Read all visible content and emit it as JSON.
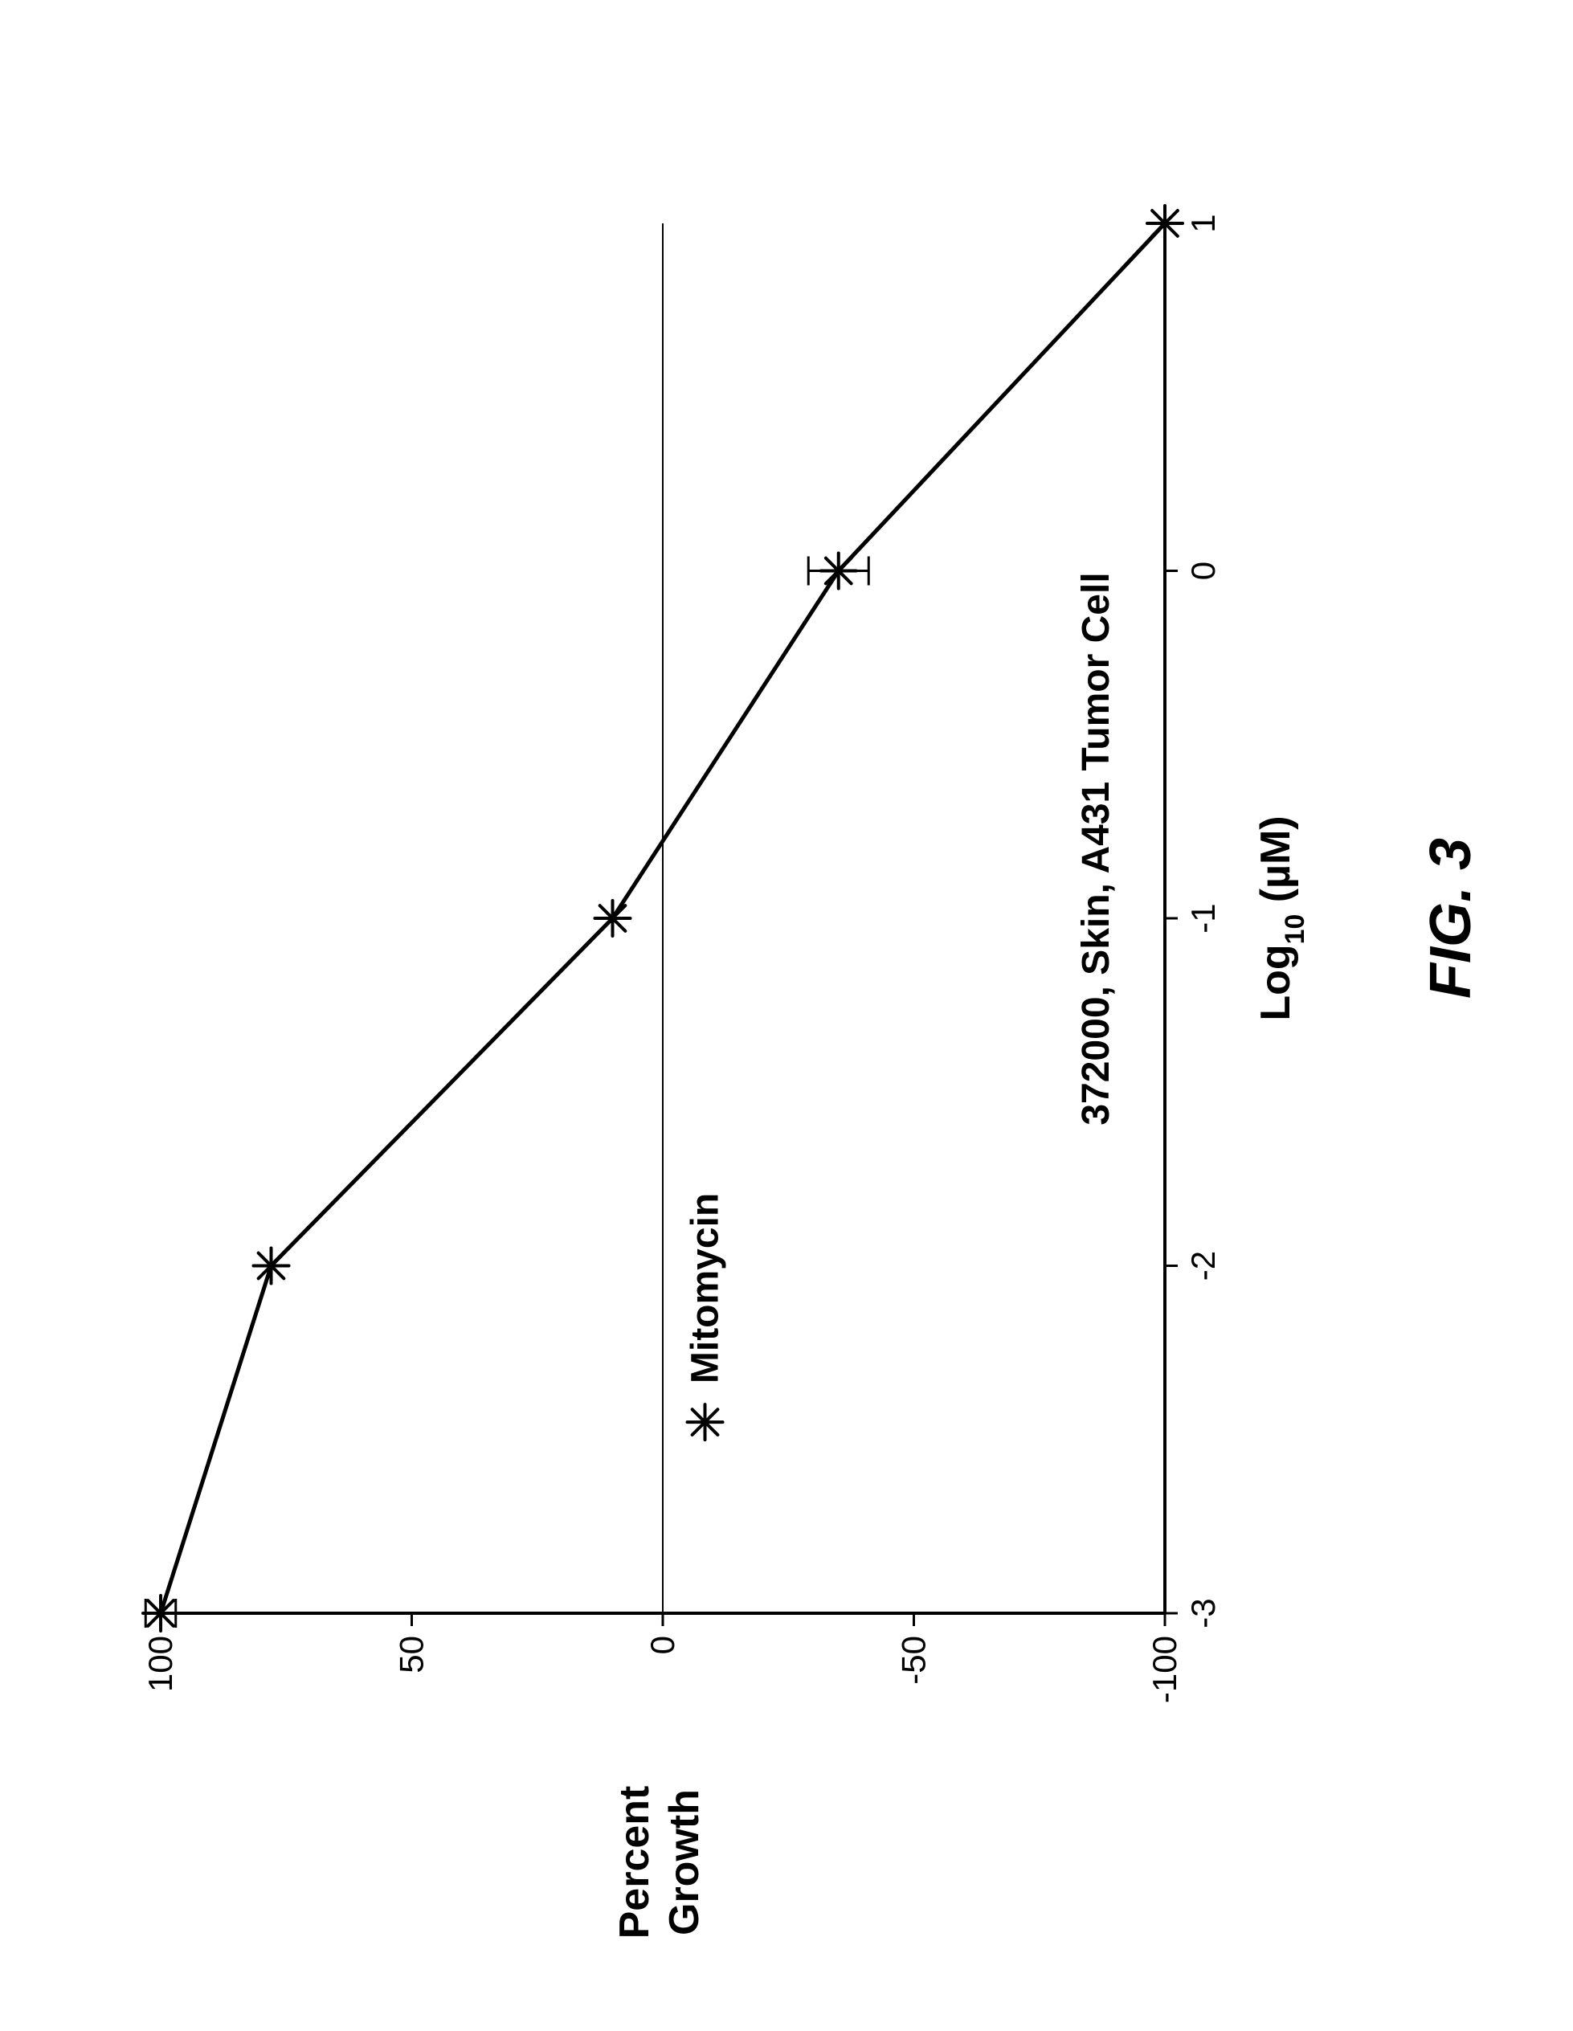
{
  "figure": {
    "caption": "FIG. 3",
    "caption_fontsize": 72,
    "caption_color": "#000000"
  },
  "chart": {
    "type": "line",
    "background_color": "#ffffff",
    "axis_color": "#000000",
    "axis_line_width": 4,
    "zero_line_color": "#000000",
    "zero_line_width": 2,
    "x_axis": {
      "label": "Log₁₀ (µM)",
      "label_plain": "Log10 (uM)",
      "label_fontsize": 52,
      "min": -3,
      "max": 1,
      "tick_step": 1,
      "ticks": [
        -3,
        -2,
        -1,
        0,
        1
      ],
      "tick_labels": [
        "-3",
        "-2",
        "-1",
        "0",
        "1"
      ],
      "tick_fontsize": 42
    },
    "y_axis": {
      "label": "Percent Growth",
      "label_fontsize": 52,
      "min": -100,
      "max": 100,
      "tick_step": 50,
      "ticks": [
        -100,
        -50,
        0,
        50,
        100
      ],
      "tick_labels": [
        "-100",
        "-50",
        "0",
        "50",
        "100"
      ],
      "tick_fontsize": 42
    },
    "series": [
      {
        "name": "Mitomycin",
        "label": "Mitomycin",
        "marker": "asterisk",
        "marker_size": 22,
        "marker_stroke_width": 4,
        "color": "#000000",
        "line_width": 5,
        "points": [
          {
            "x": -3,
            "y": 100,
            "err": 3
          },
          {
            "x": -2,
            "y": 78,
            "err": 0
          },
          {
            "x": -1,
            "y": 10,
            "err": 0
          },
          {
            "x": 0,
            "y": -35,
            "err": 6
          },
          {
            "x": 1,
            "y": -100,
            "err": 0
          }
        ]
      }
    ],
    "subtitle": "372000, Skin, A431 Tumor Cell",
    "subtitle_fontsize": 48,
    "subtitle_color": "#000000",
    "legend": {
      "marker": "asterisk",
      "label": "Mitomycin",
      "fontsize": 48
    }
  }
}
